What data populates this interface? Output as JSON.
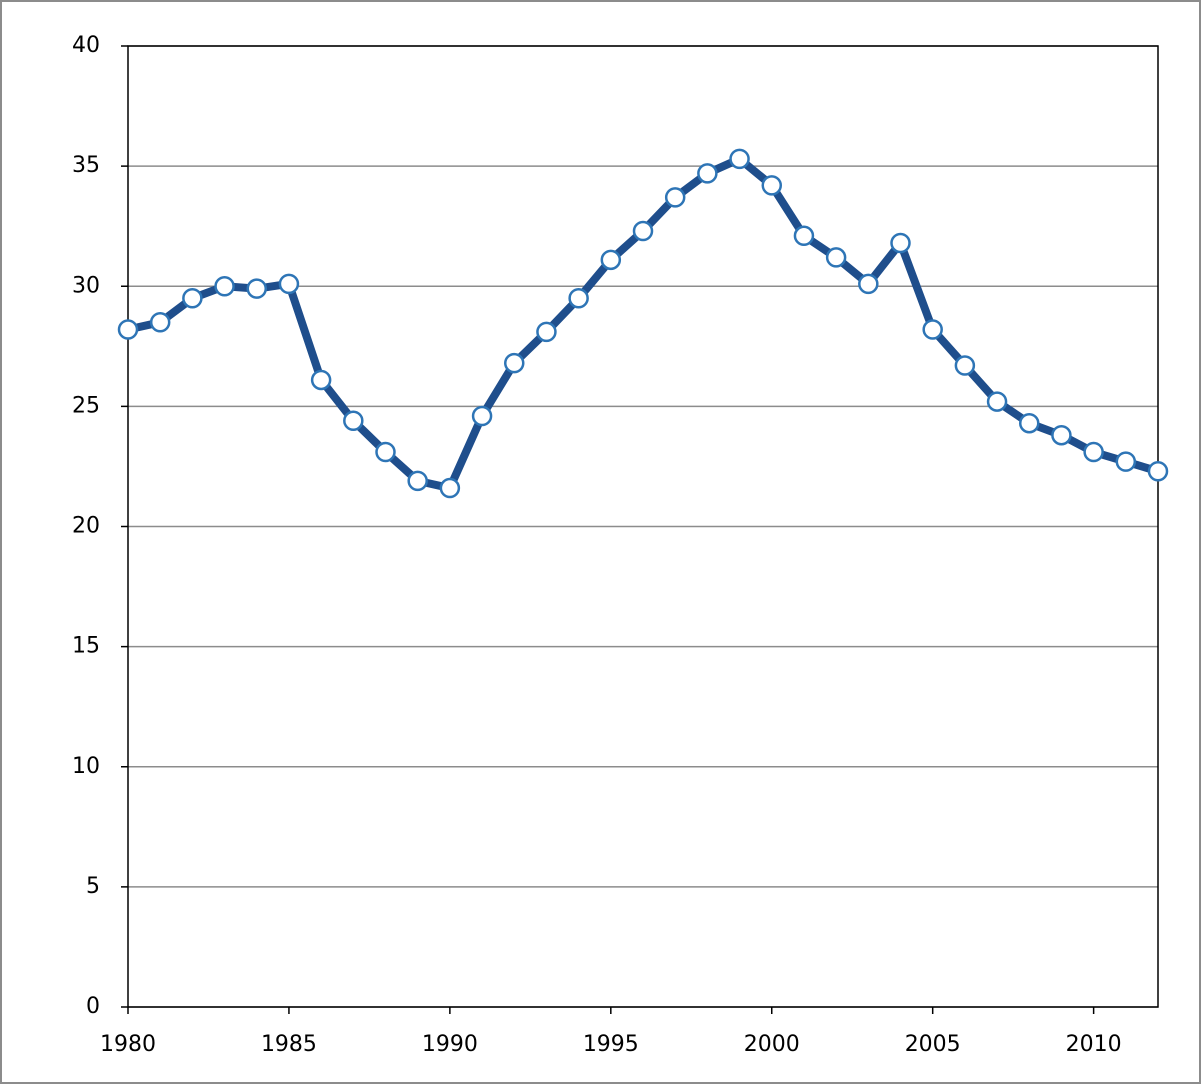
{
  "chart_data": {
    "type": "line",
    "x": [
      1980,
      1981,
      1982,
      1983,
      1984,
      1985,
      1986,
      1987,
      1988,
      1989,
      1990,
      1991,
      1992,
      1993,
      1994,
      1995,
      1996,
      1997,
      1998,
      1999,
      2000,
      2001,
      2002,
      2003,
      2004,
      2005,
      2006,
      2007,
      2008,
      2009,
      2010,
      2011,
      2012
    ],
    "values": [
      28.2,
      28.5,
      29.5,
      30.0,
      29.9,
      30.1,
      26.1,
      24.4,
      23.1,
      21.9,
      21.6,
      24.6,
      26.8,
      28.1,
      29.5,
      31.1,
      32.3,
      33.7,
      34.7,
      35.3,
      34.2,
      32.1,
      31.2,
      30.1,
      31.8,
      28.2,
      26.7,
      25.2,
      24.3,
      23.8,
      23.1,
      22.7,
      22.3
    ],
    "color": "#1f4e8c",
    "marker_color": "#2e75b6",
    "xlim": [
      1980,
      2012
    ],
    "xticks": [
      1980,
      1985,
      1990,
      1995,
      2000,
      2005,
      2010
    ],
    "ylim": [
      0,
      40
    ],
    "yticks": [
      0,
      5,
      10,
      15,
      20,
      25,
      30,
      35,
      40
    ],
    "grid": true
  }
}
